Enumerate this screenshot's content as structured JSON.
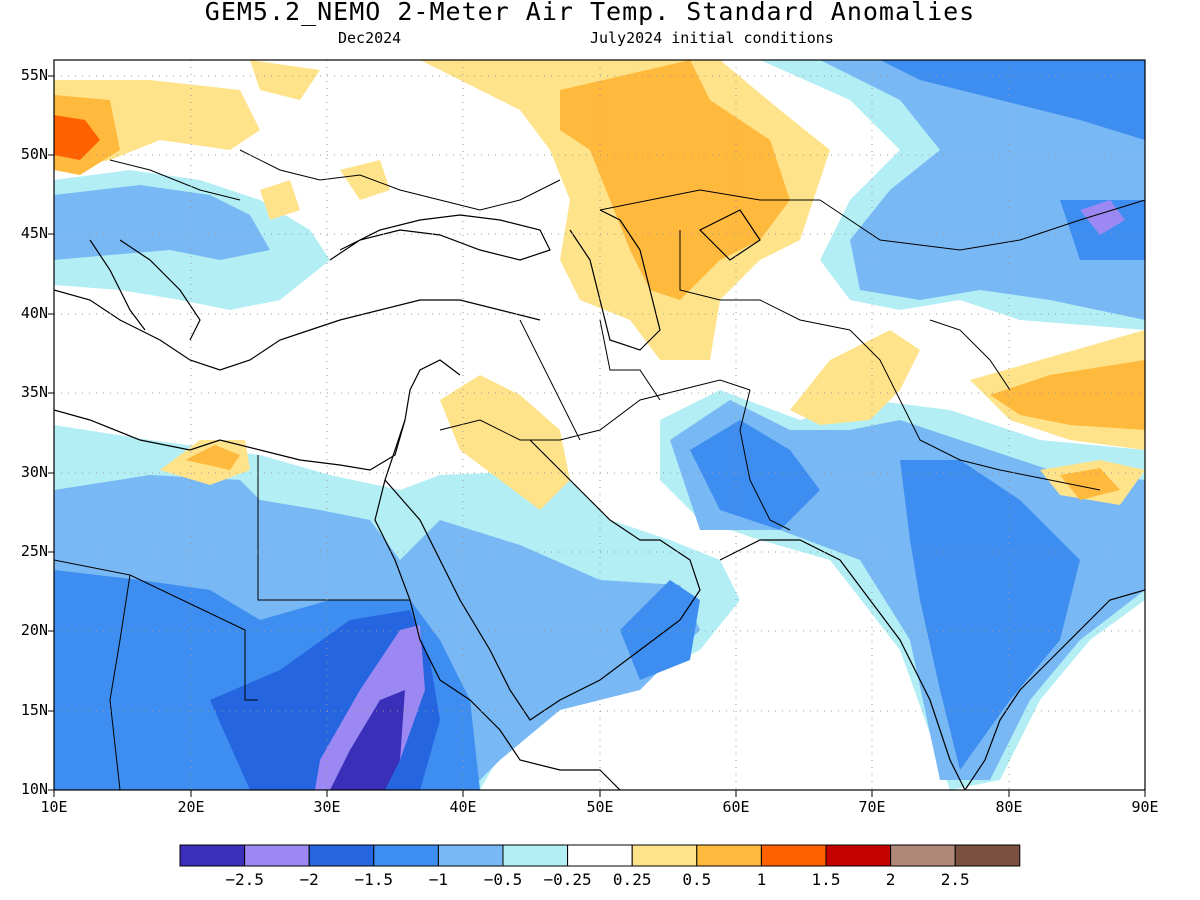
{
  "header": {
    "title": "GEM5.2_NEMO 2-Meter Air Temp. Standard Anomalies",
    "valid_month": "Dec2024",
    "init": "July2024 initial conditions"
  },
  "axes": {
    "lat_labels": [
      "55N",
      "50N",
      "45N",
      "40N",
      "35N",
      "30N",
      "25N",
      "20N",
      "15N",
      "10N"
    ],
    "lon_labels": [
      "10E",
      "20E",
      "30E",
      "40E",
      "50E",
      "60E",
      "70E",
      "80E",
      "90E"
    ],
    "lon_range": [
      10,
      90
    ],
    "lat_range": [
      10,
      56
    ]
  },
  "colorbar": {
    "colors": [
      "#3a2fb8",
      "#9c88f2",
      "#2565e0",
      "#3d8ef0",
      "#78b8f4",
      "#b3eef5",
      "#ffffff",
      "#fee38b",
      "#ffb93d",
      "#ff6000",
      "#c40000",
      "#b08878",
      "#7a5040"
    ],
    "labels": [
      "−2.5",
      "−2",
      "−1.5",
      "−1",
      "−0.5",
      "−0.25",
      "0.25",
      "0.5",
      "1",
      "1.5",
      "2",
      "2.5"
    ]
  }
}
